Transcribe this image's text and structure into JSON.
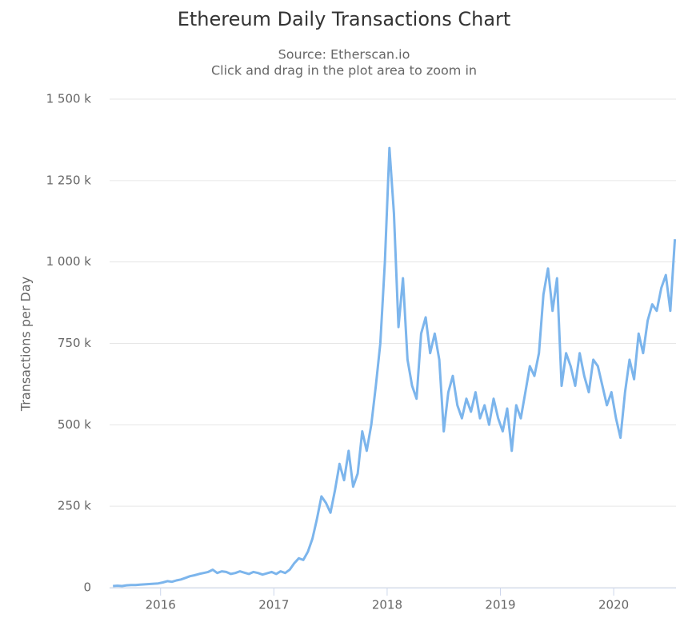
{
  "chart_data": {
    "type": "line",
    "title": "Ethereum Daily Transactions Chart",
    "subtitle": "Source: Etherscan.io",
    "subtitle2": "Click and drag in the plot area to zoom in",
    "y_label": "Transactions per Day",
    "color": "#7cb5ec",
    "grid": true,
    "x": [
      2015.58,
      2015.62,
      2015.66,
      2015.7,
      2015.74,
      2015.78,
      2015.82,
      2015.86,
      2015.9,
      2015.94,
      2015.98,
      2016.02,
      2016.06,
      2016.1,
      2016.14,
      2016.18,
      2016.22,
      2016.26,
      2016.3,
      2016.34,
      2016.38,
      2016.42,
      2016.46,
      2016.5,
      2016.54,
      2016.58,
      2016.62,
      2016.66,
      2016.7,
      2016.74,
      2016.78,
      2016.82,
      2016.86,
      2016.9,
      2016.94,
      2016.98,
      2017.02,
      2017.06,
      2017.1,
      2017.14,
      2017.18,
      2017.22,
      2017.26,
      2017.3,
      2017.34,
      2017.38,
      2017.42,
      2017.46,
      2017.5,
      2017.54,
      2017.58,
      2017.62,
      2017.66,
      2017.7,
      2017.74,
      2017.78,
      2017.82,
      2017.86,
      2017.9,
      2017.94,
      2017.98,
      2018.02,
      2018.06,
      2018.1,
      2018.14,
      2018.18,
      2018.22,
      2018.26,
      2018.3,
      2018.34,
      2018.38,
      2018.42,
      2018.46,
      2018.5,
      2018.54,
      2018.58,
      2018.62,
      2018.66,
      2018.7,
      2018.74,
      2018.78,
      2018.82,
      2018.86,
      2018.9,
      2018.94,
      2018.98,
      2019.02,
      2019.06,
      2019.1,
      2019.14,
      2019.18,
      2019.22,
      2019.26,
      2019.3,
      2019.34,
      2019.38,
      2019.42,
      2019.46,
      2019.5,
      2019.54,
      2019.58,
      2019.62,
      2019.66,
      2019.7,
      2019.74,
      2019.78,
      2019.82,
      2019.86,
      2019.9,
      2019.94,
      2019.98,
      2020.02,
      2020.06,
      2020.1,
      2020.14,
      2020.18,
      2020.22,
      2020.26,
      2020.3,
      2020.34,
      2020.38,
      2020.42,
      2020.46,
      2020.5,
      2020.54
    ],
    "values": [
      5000,
      6000,
      5000,
      7000,
      8000,
      8000,
      9000,
      10000,
      11000,
      12000,
      13000,
      16000,
      20000,
      18000,
      22000,
      25000,
      30000,
      35000,
      38000,
      42000,
      45000,
      48000,
      55000,
      45000,
      50000,
      48000,
      42000,
      45000,
      50000,
      46000,
      42000,
      48000,
      45000,
      40000,
      44000,
      48000,
      42000,
      50000,
      45000,
      55000,
      75000,
      90000,
      85000,
      110000,
      150000,
      210000,
      280000,
      260000,
      230000,
      300000,
      380000,
      330000,
      420000,
      310000,
      350000,
      480000,
      420000,
      500000,
      620000,
      750000,
      1000000,
      1350000,
      1150000,
      800000,
      950000,
      700000,
      620000,
      580000,
      780000,
      830000,
      720000,
      780000,
      700000,
      480000,
      600000,
      650000,
      560000,
      520000,
      580000,
      540000,
      600000,
      520000,
      560000,
      500000,
      580000,
      520000,
      480000,
      550000,
      420000,
      560000,
      520000,
      600000,
      680000,
      650000,
      720000,
      900000,
      980000,
      850000,
      950000,
      620000,
      720000,
      680000,
      620000,
      720000,
      650000,
      600000,
      700000,
      680000,
      620000,
      560000,
      600000,
      520000,
      460000,
      600000,
      700000,
      640000,
      780000,
      720000,
      820000,
      870000,
      850000,
      920000,
      960000,
      850000,
      1070000
    ],
    "xlim": [
      2015.55,
      2020.55
    ],
    "xticks": [
      2016,
      2017,
      2018,
      2019,
      2020
    ],
    "ylim": [
      0,
      1500000
    ],
    "yticks": [
      {
        "value": 0,
        "label": "0"
      },
      {
        "value": 250000,
        "label": "250 k"
      },
      {
        "value": 500000,
        "label": "500 k"
      },
      {
        "value": 750000,
        "label": "750 k"
      },
      {
        "value": 1000000,
        "label": "1 000 k"
      },
      {
        "value": 1250000,
        "label": "1 250 k"
      },
      {
        "value": 1500000,
        "label": "1 500 k"
      }
    ]
  }
}
